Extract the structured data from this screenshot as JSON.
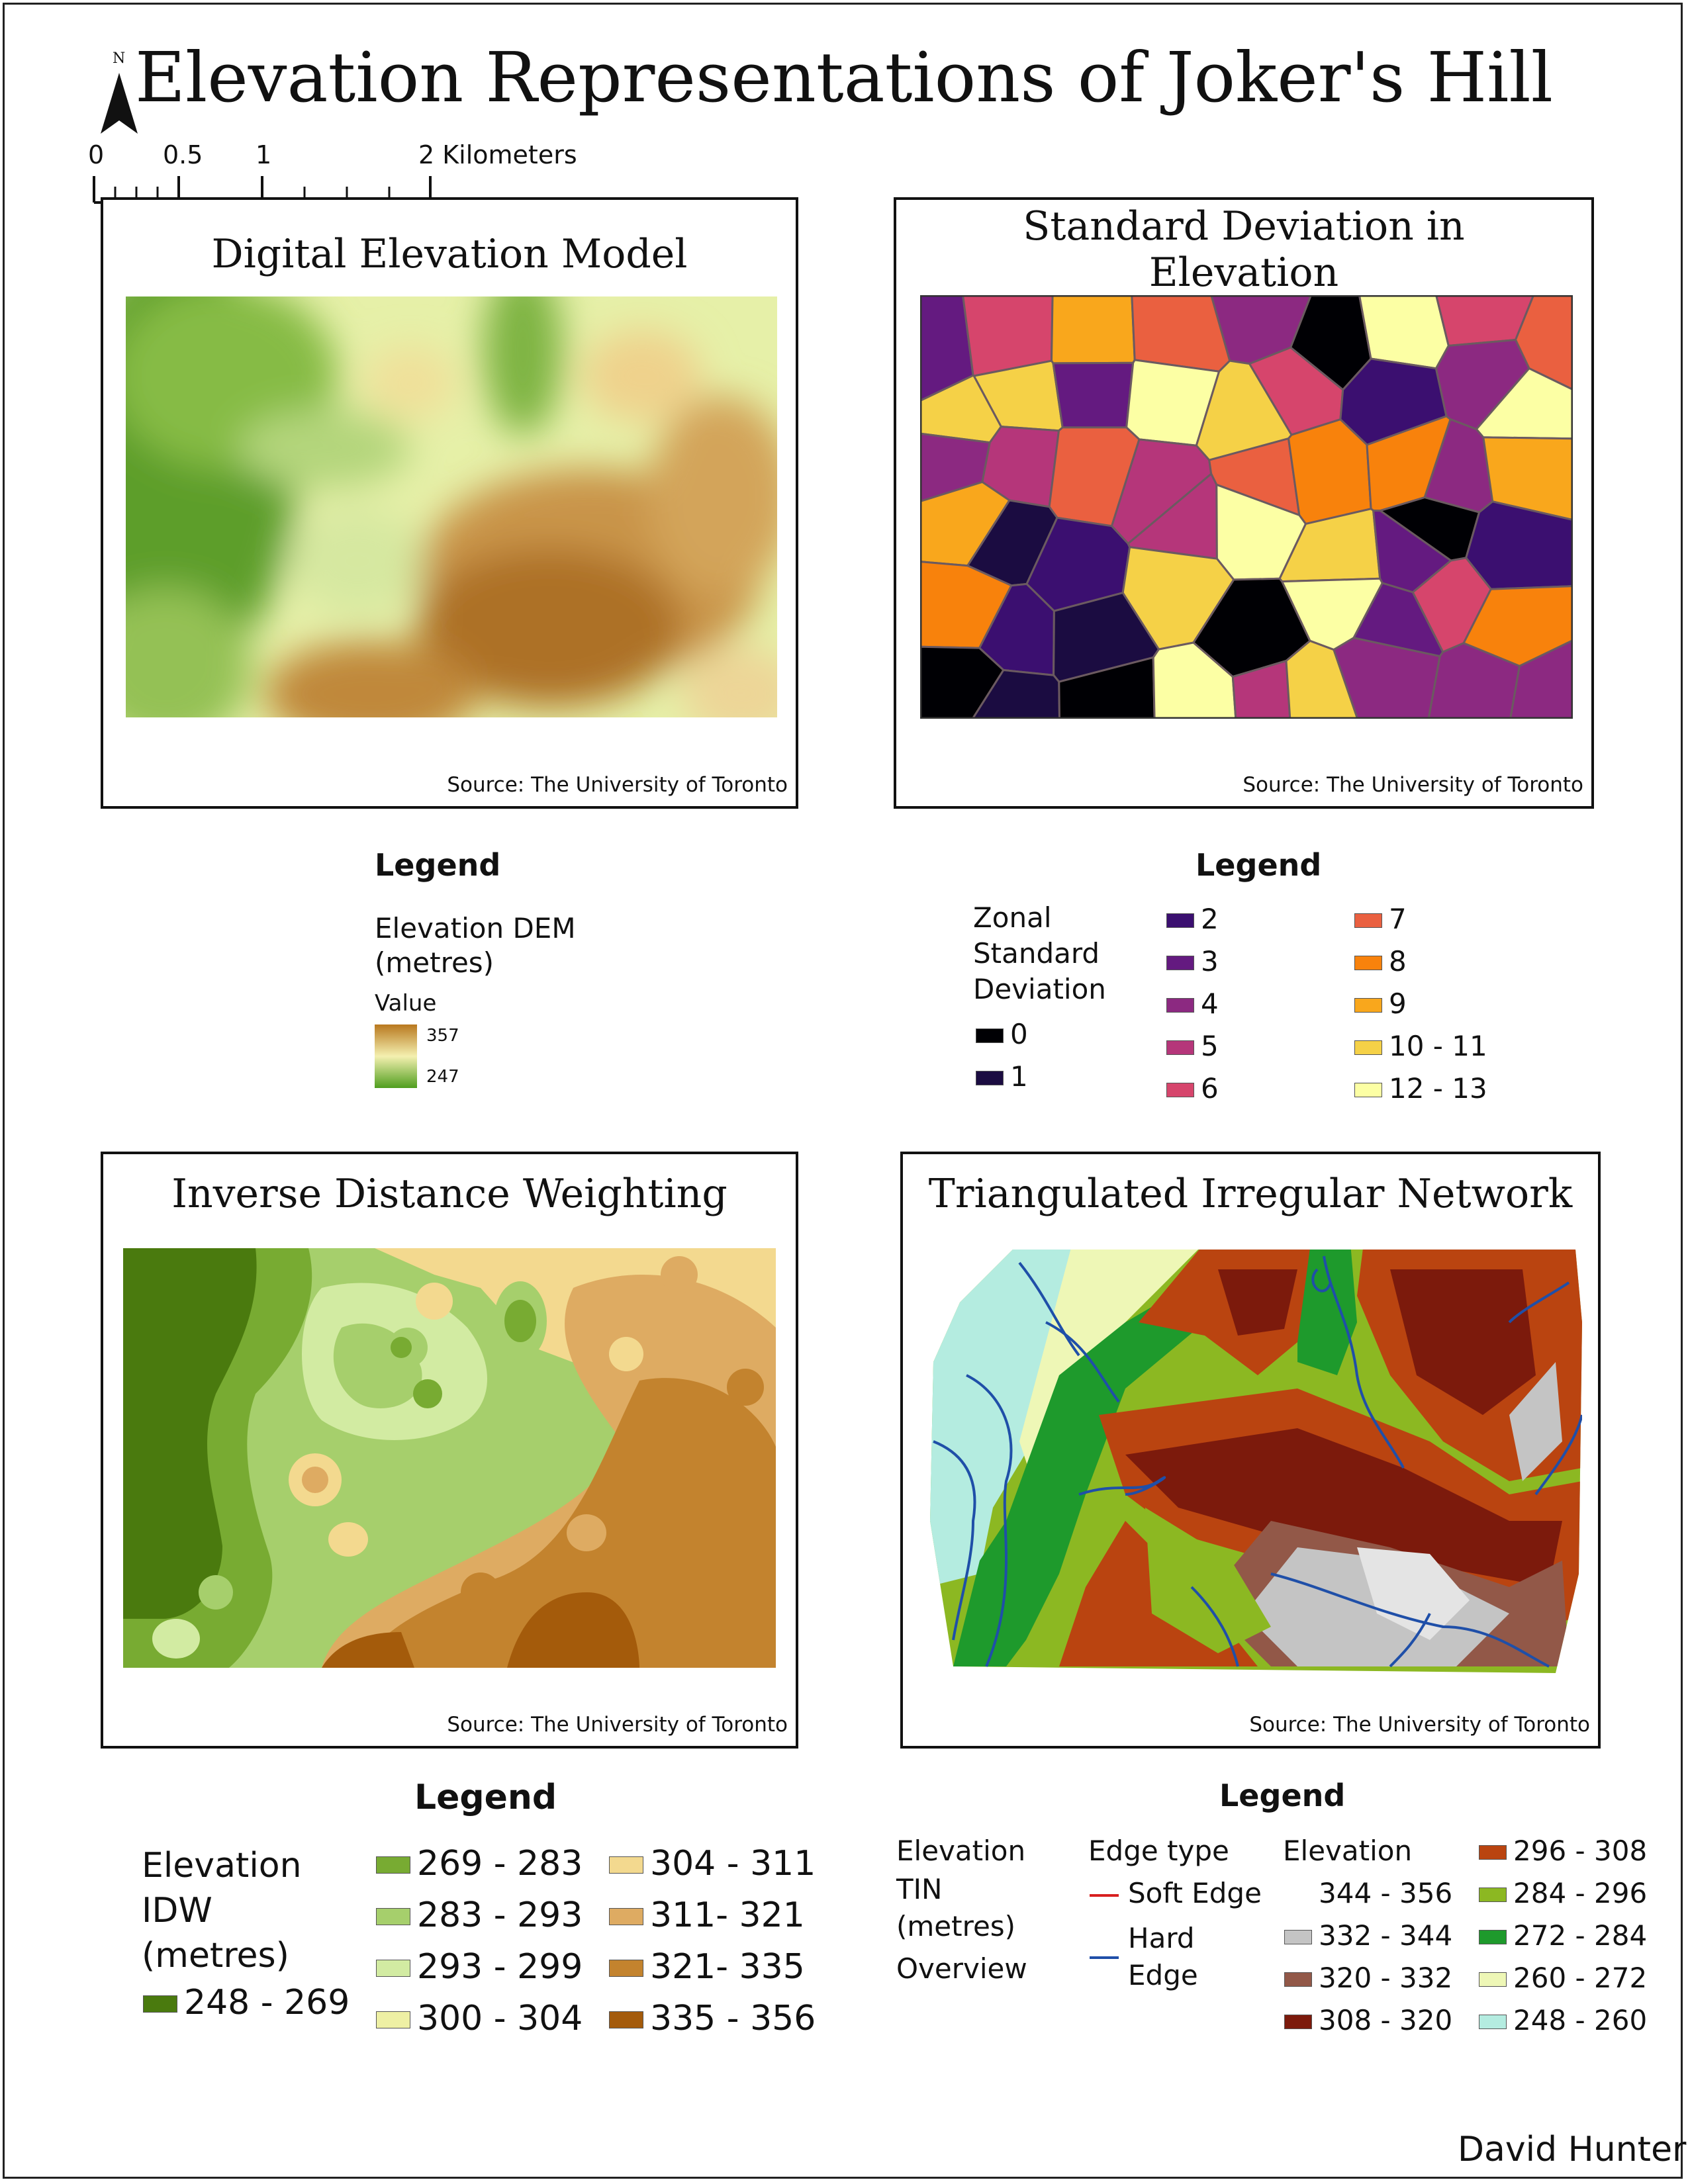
{
  "title": "Elevation Representations of Joker's Hill",
  "north_label": "N",
  "scale_labels": [
    "0",
    "0.5",
    "1",
    "2 Kilometers"
  ],
  "author": "David Hunter",
  "panels": {
    "dem": {
      "title": "Digital Elevation Model",
      "source": "Source: The University of Toronto"
    },
    "std": {
      "title_line1": "Standard Deviation in",
      "title_line2": "Elevation",
      "source": "Source: The University of Toronto"
    },
    "idw": {
      "title": "Inverse Distance Weighting",
      "source": "Source: The University of Toronto"
    },
    "tin": {
      "title": "Triangulated Irregular Network",
      "source": "Source: The University of Toronto"
    }
  },
  "legends": {
    "dem": {
      "heading": "Legend",
      "layer_line1": "Elevation DEM",
      "layer_line2": "(metres)",
      "value_label": "Value",
      "high": "357",
      "low": "247",
      "colors": {
        "high": "#b8781e",
        "mid": "#f4f0b0",
        "low": "#4f9e1e"
      }
    },
    "std": {
      "heading": "Legend",
      "layer_line1": "Zonal",
      "layer_line2": "Standard",
      "layer_line3": "Deviation",
      "classes": [
        {
          "label": "0",
          "color": "#000004"
        },
        {
          "label": "1",
          "color": "#1b0c41"
        },
        {
          "label": "2",
          "color": "#3b0f70"
        },
        {
          "label": "3",
          "color": "#641a80"
        },
        {
          "label": "4",
          "color": "#8c2981"
        },
        {
          "label": "5",
          "color": "#b5367a"
        },
        {
          "label": "6",
          "color": "#d6456c"
        },
        {
          "label": "7",
          "color": "#ea6040"
        },
        {
          "label": "8",
          "color": "#f8820c"
        },
        {
          "label": "9",
          "color": "#f9a71c"
        },
        {
          "label": "10 - 11",
          "color": "#f5d147"
        },
        {
          "label": "12 - 13",
          "color": "#fcffa4"
        }
      ]
    },
    "idw": {
      "heading": "Legend",
      "layer_line1": "Elevation",
      "layer_line2": "IDW",
      "layer_line3": "(metres)",
      "classes": [
        {
          "label": "248 - 269",
          "color": "#4a7a0e"
        },
        {
          "label": "269 - 283",
          "color": "#78ab32"
        },
        {
          "label": "283 - 293",
          "color": "#a6cf6c"
        },
        {
          "label": "293 - 299",
          "color": "#d2eba2"
        },
        {
          "label": "300 - 304",
          "color": "#eef0a4"
        },
        {
          "label": "304 - 311",
          "color": "#f3d98f"
        },
        {
          "label": "311- 321",
          "color": "#deab62"
        },
        {
          "label": "321- 335",
          "color": "#c3832e"
        },
        {
          "label": "335 - 356",
          "color": "#a45b0b"
        }
      ]
    },
    "tin": {
      "heading": "Legend",
      "layer_line1": "Elevation",
      "layer_line2": "TIN",
      "layer_line3": "(metres)",
      "layer_line4": "Overview",
      "edge_heading": "Edge type",
      "edges": [
        {
          "label_line1": "Soft Edge",
          "label_line2": "",
          "color": "#d82020"
        },
        {
          "label_line1": "Hard",
          "label_line2": "Edge",
          "color": "#1f4fa8"
        }
      ],
      "elev_heading": "Elevation",
      "classes": [
        {
          "label": "344 - 356",
          "color": "#ffffff"
        },
        {
          "label": "332 - 344",
          "color": "#c4c4c4"
        },
        {
          "label": "320 - 332",
          "color": "#925848"
        },
        {
          "label": "308 - 320",
          "color": "#7c1a0c"
        },
        {
          "label": "296 - 308",
          "color": "#ba4410"
        },
        {
          "label": "284 - 296",
          "color": "#8cb822"
        },
        {
          "label": "272 - 284",
          "color": "#1e9a2c"
        },
        {
          "label": "260 - 272",
          "color": "#eef7b6"
        },
        {
          "label": "248 - 260",
          "color": "#b4ece0"
        }
      ]
    }
  }
}
